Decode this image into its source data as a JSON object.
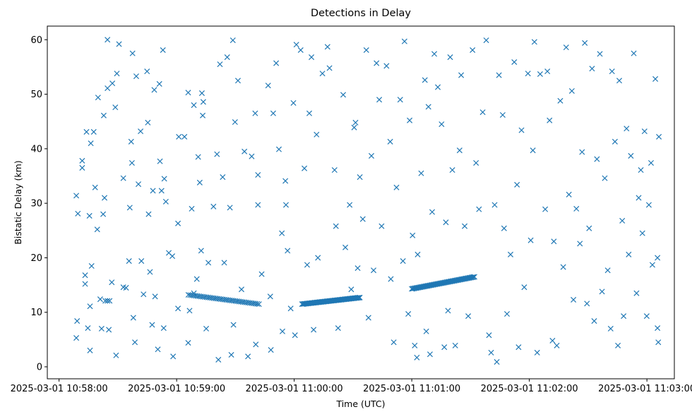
{
  "chart_data": {
    "type": "scatter",
    "title": "Detections in Delay",
    "xlabel": "Time (UTC)",
    "ylabel": "Bistatic Delay (km)",
    "xlim": [
      -6,
      314
    ],
    "ylim": [
      -2.2,
      62.5
    ],
    "x_ticks": [
      {
        "value": 0,
        "label": "2025-03-01 10:58:00"
      },
      {
        "value": 60,
        "label": "2025-03-01 10:59:00"
      },
      {
        "value": 120,
        "label": "2025-03-01 11:00:00"
      },
      {
        "value": 180,
        "label": "2025-03-01 11:01:00"
      },
      {
        "value": 240,
        "label": "2025-03-01 11:02:00"
      },
      {
        "value": 300,
        "label": "2025-03-01 11:03:00"
      }
    ],
    "y_ticks": [
      {
        "value": 0,
        "label": "0"
      },
      {
        "value": 10,
        "label": "10"
      },
      {
        "value": 20,
        "label": "20"
      },
      {
        "value": 30,
        "label": "30"
      },
      {
        "value": 40,
        "label": "40"
      },
      {
        "value": 50,
        "label": "50"
      },
      {
        "value": 60,
        "label": "60"
      }
    ],
    "grid": false,
    "marker": "x",
    "color": "#1f77b4",
    "tracks": [
      {
        "t0": 66,
        "t1": 102,
        "km0": 13.2,
        "km1": 11.5,
        "n": 40
      },
      {
        "t0": 124,
        "t1": 153.5,
        "km0": 11.5,
        "km1": 12.7,
        "n": 60
      },
      {
        "t0": 180,
        "t1": 212,
        "km0": 14.3,
        "km1": 16.5,
        "n": 60
      }
    ],
    "points": [
      [
        8.8,
        31.4
      ],
      [
        9.6,
        28.1
      ],
      [
        9.2,
        8.4
      ],
      [
        8.8,
        5.3
      ],
      [
        11.8,
        37.8
      ],
      [
        11.8,
        36.5
      ],
      [
        13.3,
        16.8
      ],
      [
        13.3,
        15.2
      ],
      [
        14,
        43.1
      ],
      [
        14.7,
        7.1
      ],
      [
        15.5,
        27.7
      ],
      [
        16.2,
        41
      ],
      [
        15.8,
        3
      ],
      [
        16.6,
        18.5
      ],
      [
        15.8,
        11.1
      ],
      [
        17.7,
        43.1
      ],
      [
        18.4,
        32.9
      ],
      [
        19.5,
        25.2
      ],
      [
        19.9,
        49.4
      ],
      [
        21,
        12.4
      ],
      [
        21.7,
        7
      ],
      [
        22.5,
        28
      ],
      [
        22.8,
        46.1
      ],
      [
        23.2,
        31
      ],
      [
        23.6,
        12.1
      ],
      [
        24.7,
        12.1
      ],
      [
        25.8,
        12.1
      ],
      [
        24.7,
        60
      ],
      [
        24.7,
        51.1
      ],
      [
        25.4,
        6.8
      ],
      [
        27.2,
        52
      ],
      [
        26.9,
        15.5
      ],
      [
        28.7,
        47.6
      ],
      [
        29.1,
        2.1
      ],
      [
        29.5,
        53.8
      ],
      [
        30.6,
        59.2
      ],
      [
        32.8,
        14.6
      ],
      [
        32.8,
        34.6
      ],
      [
        34.2,
        14.5
      ],
      [
        35.7,
        19.4
      ],
      [
        36.8,
        41.3
      ],
      [
        36.1,
        29.2
      ],
      [
        37.5,
        57.5
      ],
      [
        37.2,
        37.4
      ],
      [
        37.9,
        9
      ],
      [
        38.7,
        4.5
      ],
      [
        39.4,
        53.3
      ],
      [
        40.5,
        33.5
      ],
      [
        41.6,
        43.2
      ],
      [
        42,
        19.4
      ],
      [
        43.1,
        13.3
      ],
      [
        44.9,
        54.2
      ],
      [
        45.3,
        44.8
      ],
      [
        45.7,
        28
      ],
      [
        46.4,
        17.4
      ],
      [
        47.5,
        7.7
      ],
      [
        48.6,
        50.8
      ],
      [
        47.9,
        32.3
      ],
      [
        49,
        12.9
      ],
      [
        50.4,
        3.2
      ],
      [
        51.2,
        51.9
      ],
      [
        51.5,
        37.7
      ],
      [
        52.3,
        32.3
      ],
      [
        53,
        58.1
      ],
      [
        53.7,
        34.5
      ],
      [
        53.4,
        7.1
      ],
      [
        54.5,
        30.3
      ],
      [
        56,
        20.9
      ],
      [
        57.8,
        20.3
      ],
      [
        58.2,
        1.9
      ],
      [
        60.7,
        26.3
      ],
      [
        60.7,
        10.7
      ],
      [
        61.1,
        42.2
      ],
      [
        64,
        42.2
      ],
      [
        65.9,
        50.3
      ],
      [
        66.6,
        10.3
      ],
      [
        65.9,
        4.4
      ],
      [
        67.7,
        29
      ],
      [
        68.8,
        48
      ],
      [
        68.8,
        13.5
      ],
      [
        70.3,
        16.1
      ],
      [
        71,
        38.5
      ],
      [
        71.8,
        33.8
      ],
      [
        72.9,
        50.2
      ],
      [
        73.3,
        46.1
      ],
      [
        73.6,
        48.6
      ],
      [
        72.5,
        21.3
      ],
      [
        75.1,
        7
      ],
      [
        76.2,
        19.1
      ],
      [
        78.8,
        29.4
      ],
      [
        80.6,
        39
      ],
      [
        81.3,
        1.3
      ],
      [
        82.1,
        55.5
      ],
      [
        83.5,
        34.8
      ],
      [
        84.3,
        19.1
      ],
      [
        85.8,
        56.8
      ],
      [
        87.2,
        29.2
      ],
      [
        87.9,
        2.2
      ],
      [
        88.7,
        59.9
      ],
      [
        89.8,
        44.9
      ],
      [
        89,
        7.7
      ],
      [
        91.3,
        52.5
      ],
      [
        93.1,
        14.2
      ],
      [
        94.6,
        39.5
      ],
      [
        96.4,
        1.9
      ],
      [
        98.3,
        38.6
      ],
      [
        100.1,
        46.5
      ],
      [
        100.4,
        4.1
      ],
      [
        101.5,
        35.2
      ],
      [
        101.5,
        29.7
      ],
      [
        103.4,
        17
      ],
      [
        106.7,
        51.6
      ],
      [
        107.8,
        12.9
      ],
      [
        108.1,
        3.1
      ],
      [
        109.3,
        46.5
      ],
      [
        110.8,
        55.7
      ],
      [
        112.2,
        39.9
      ],
      [
        113.7,
        24.5
      ],
      [
        114,
        6.5
      ],
      [
        115.5,
        34.1
      ],
      [
        115.8,
        29.7
      ],
      [
        116.6,
        21.3
      ],
      [
        118.2,
        10.7
      ],
      [
        119.6,
        48.4
      ],
      [
        120.4,
        5.8
      ],
      [
        121.1,
        59.1
      ],
      [
        123.3,
        58.1
      ],
      [
        125.2,
        36.4
      ],
      [
        126.6,
        18.7
      ],
      [
        127.7,
        46.5
      ],
      [
        128.8,
        56.8
      ],
      [
        129.9,
        6.8
      ],
      [
        131.4,
        42.6
      ],
      [
        132.1,
        20
      ],
      [
        134.4,
        53.8
      ],
      [
        137,
        58.7
      ],
      [
        138,
        54.8
      ],
      [
        140.6,
        36.1
      ],
      [
        141.3,
        25.8
      ],
      [
        142.4,
        7.1
      ],
      [
        145,
        49.9
      ],
      [
        146.1,
        21.9
      ],
      [
        148.3,
        29.7
      ],
      [
        149.1,
        14.2
      ],
      [
        150.6,
        43.9
      ],
      [
        151.3,
        44.8
      ],
      [
        152.4,
        18.1
      ],
      [
        153.5,
        34.8
      ],
      [
        155,
        27.1
      ],
      [
        156.8,
        58.1
      ],
      [
        157.9,
        9
      ],
      [
        159.4,
        38.7
      ],
      [
        160.5,
        17.7
      ],
      [
        162,
        55.7
      ],
      [
        163.4,
        49
      ],
      [
        164.6,
        25.8
      ],
      [
        167.1,
        55.2
      ],
      [
        169,
        41.3
      ],
      [
        169.3,
        16.1
      ],
      [
        170.8,
        4.5
      ],
      [
        172.2,
        32.9
      ],
      [
        174.1,
        49
      ],
      [
        175.5,
        19.4
      ],
      [
        176.3,
        59.7
      ],
      [
        178.2,
        9.7
      ],
      [
        178.9,
        45.2
      ],
      [
        180.4,
        24.1
      ],
      [
        181.5,
        3.9
      ],
      [
        182.6,
        1.7
      ],
      [
        183,
        20.6
      ],
      [
        184.8,
        35.5
      ],
      [
        186.7,
        52.6
      ],
      [
        187.4,
        6.5
      ],
      [
        188.5,
        47.7
      ],
      [
        189.3,
        2.3
      ],
      [
        190.4,
        28.4
      ],
      [
        191.5,
        57.4
      ],
      [
        193.3,
        51.3
      ],
      [
        195.2,
        44.5
      ],
      [
        196.6,
        3.6
      ],
      [
        197.4,
        26.5
      ],
      [
        198.5,
        10.3
      ],
      [
        199.6,
        56.8
      ],
      [
        200.7,
        36.1
      ],
      [
        202.2,
        3.9
      ],
      [
        204.4,
        39.7
      ],
      [
        205.2,
        53.5
      ],
      [
        207,
        25.8
      ],
      [
        208.8,
        9.3
      ],
      [
        211,
        58.1
      ],
      [
        212.8,
        37.4
      ],
      [
        214.3,
        28.9
      ],
      [
        216.2,
        46.7
      ],
      [
        218,
        59.9
      ],
      [
        219.4,
        5.8
      ],
      [
        220.5,
        2.6
      ],
      [
        222.3,
        29.7
      ],
      [
        223.4,
        0.9
      ],
      [
        224.5,
        53.5
      ],
      [
        226.4,
        46.2
      ],
      [
        227.1,
        25.4
      ],
      [
        228.6,
        9.7
      ],
      [
        230.4,
        20.6
      ],
      [
        232.3,
        55.9
      ],
      [
        233.7,
        33.4
      ],
      [
        234.5,
        3.6
      ],
      [
        236,
        43.4
      ],
      [
        237.4,
        14.6
      ],
      [
        239.3,
        53.8
      ],
      [
        240.7,
        23.2
      ],
      [
        241.8,
        39.7
      ],
      [
        242.6,
        59.6
      ],
      [
        244,
        2.6
      ],
      [
        245.5,
        53.7
      ],
      [
        248.1,
        28.9
      ],
      [
        249.2,
        54.2
      ],
      [
        250.3,
        45.2
      ],
      [
        251.8,
        4.8
      ],
      [
        252.5,
        23
      ],
      [
        254,
        3.9
      ],
      [
        255.8,
        48.8
      ],
      [
        257.3,
        18.3
      ],
      [
        258.8,
        58.6
      ],
      [
        260.2,
        31.6
      ],
      [
        261.7,
        50.6
      ],
      [
        262.5,
        12.3
      ],
      [
        264,
        29
      ],
      [
        265.8,
        22.6
      ],
      [
        266.9,
        39.4
      ],
      [
        268.3,
        59.4
      ],
      [
        269.4,
        11.6
      ],
      [
        270.5,
        25.4
      ],
      [
        272,
        54.7
      ],
      [
        273.1,
        8.4
      ],
      [
        274.5,
        38.1
      ],
      [
        276,
        57.4
      ],
      [
        277.1,
        13.8
      ],
      [
        278.5,
        34.6
      ],
      [
        280,
        17.7
      ],
      [
        281.5,
        7
      ],
      [
        282.2,
        54.2
      ],
      [
        283.7,
        41.3
      ],
      [
        285.2,
        3.9
      ],
      [
        285.9,
        52.5
      ],
      [
        287.4,
        26.8
      ],
      [
        288.1,
        9.3
      ],
      [
        289.6,
        43.7
      ],
      [
        290.7,
        20.6
      ],
      [
        291.8,
        38.7
      ],
      [
        293.3,
        57.5
      ],
      [
        294.7,
        13.5
      ],
      [
        295.8,
        31
      ],
      [
        296.9,
        36.1
      ],
      [
        297.7,
        24.5
      ],
      [
        298.8,
        43.2
      ],
      [
        299.9,
        9.3
      ],
      [
        301,
        29.7
      ],
      [
        302.1,
        37.4
      ],
      [
        302.8,
        18.7
      ],
      [
        304.3,
        52.8
      ],
      [
        305.4,
        7.1
      ],
      [
        306.1,
        42.2
      ],
      [
        305.8,
        4.5
      ],
      [
        305.4,
        20
      ]
    ]
  }
}
